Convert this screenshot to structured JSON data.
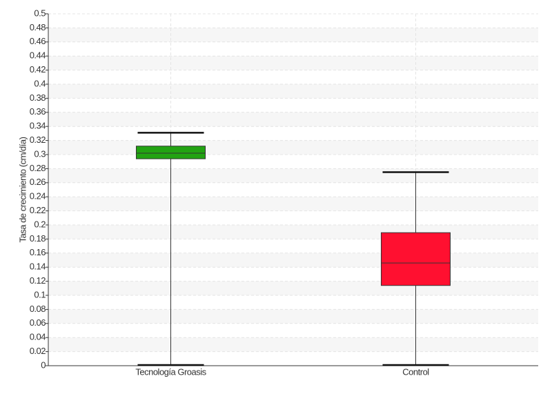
{
  "chart_data": {
    "type": "box",
    "ylabel": "Tasa de crecimiento (cm/día)",
    "categories": [
      "Tecnología Groasis",
      "Control"
    ],
    "colors": [
      "#22a312",
      "#ff1030"
    ],
    "min": [
      0,
      0
    ],
    "q1": [
      0.294,
      0.114
    ],
    "median": [
      0.302,
      0.146
    ],
    "q3": [
      0.312,
      0.189
    ],
    "max": [
      0.331,
      0.275
    ],
    "ylim": [
      0,
      0.5
    ],
    "yticks": [
      0,
      0.02,
      0.04,
      0.06,
      0.08,
      0.1,
      0.12,
      0.14,
      0.16,
      0.18,
      0.2,
      0.22,
      0.24,
      0.26,
      0.28,
      0.3,
      0.32,
      0.34,
      0.36,
      0.38,
      0.4,
      0.42,
      0.44,
      0.46,
      0.48,
      0.5
    ],
    "grid": true
  }
}
